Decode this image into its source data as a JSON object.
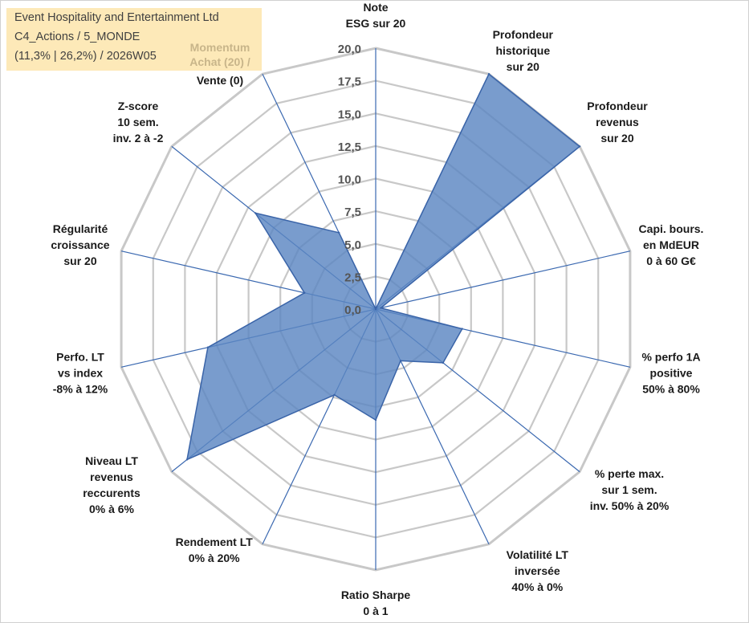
{
  "info_box": {
    "line1": "Event Hospitality and Entertainment Ltd",
    "line2": "C4_Actions / 5_MONDE",
    "line3": "(11,3% | 26,2%) / 2026W05",
    "momentum": "Momentum Achat (20) /",
    "momentum_rest": "Vente (0)"
  },
  "colors": {
    "fill": "#5b86c2",
    "stroke": "#3a64a8",
    "grid": "#c8c8c8",
    "spoke": "#3a68b0",
    "info_bg": "#fde9b8"
  },
  "chart_data": {
    "type": "radar",
    "title": "",
    "r_min": 0,
    "r_max": 20,
    "tick_step": 2.5,
    "tick_labels": [
      "0,0",
      "2,5",
      "5,0",
      "7,5",
      "10,0",
      "12,5",
      "15,0",
      "17,5",
      "20,0"
    ],
    "axes": [
      {
        "label": [
          "Note",
          "ESG sur 20"
        ],
        "value": 0
      },
      {
        "label": [
          "Profondeur",
          "historique",
          "sur 20"
        ],
        "value": 20
      },
      {
        "label": [
          "Profondeur",
          "revenus",
          "sur 20"
        ],
        "value": 20
      },
      {
        "label": [
          "Capi. bours.",
          "en MdEUR",
          "0 à 60 G€"
        ],
        "value": 0.4
      },
      {
        "label": [
          "% perfo 1A",
          "positive",
          "50% à 80%"
        ],
        "value": 6.8
      },
      {
        "label": [
          "% perte max.",
          "sur 1 sem.",
          "inv. 50% à 20%"
        ],
        "value": 6.6
      },
      {
        "label": [
          "Volatilité LT",
          "inversée",
          "40% à 0%"
        ],
        "value": 4.4
      },
      {
        "label": [
          "Ratio Sharpe",
          "0 à 1"
        ],
        "value": 8.5
      },
      {
        "label": [
          "Rendement LT",
          "0% à 20%"
        ],
        "value": 7.3
      },
      {
        "label": [
          "Niveau LT",
          "revenus",
          "reccurents",
          "0% à 6%"
        ],
        "value": 18.5
      },
      {
        "label": [
          "Perfo. LT",
          "vs index",
          "-8% à 12%"
        ],
        "value": 13.2
      },
      {
        "label": [
          "Régularité",
          "croissance",
          "sur 20"
        ],
        "value": 5.6
      },
      {
        "label": [
          "Z-score",
          "10 sem.",
          "inv. 2 à -2"
        ],
        "value": 11.8
      },
      {
        "label": [
          "Momentum Achat (20) /",
          "Vente (0)"
        ],
        "value": 6.5
      }
    ]
  }
}
